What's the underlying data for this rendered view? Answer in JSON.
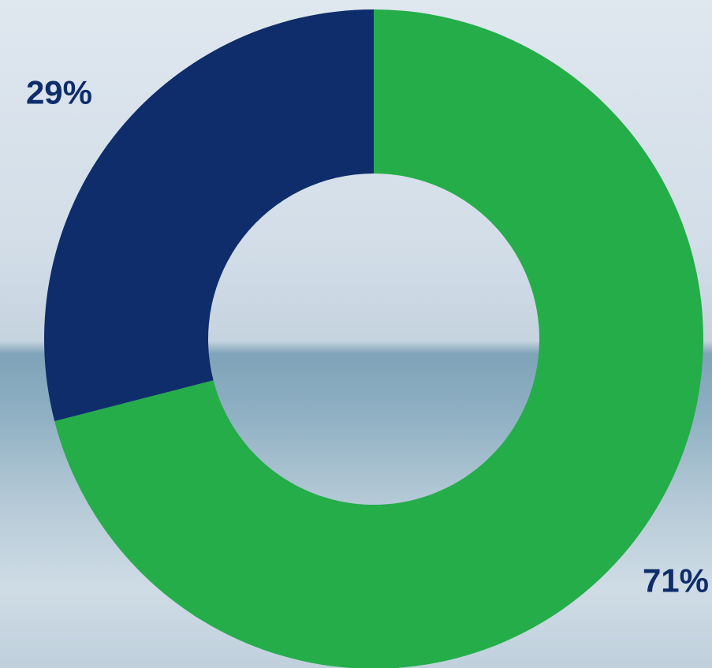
{
  "chart_data": {
    "type": "donut",
    "values": [
      71,
      29
    ],
    "value_labels": [
      "71%",
      "29%"
    ],
    "colors": [
      "#25ad4a",
      "#0f2d6b"
    ]
  }
}
